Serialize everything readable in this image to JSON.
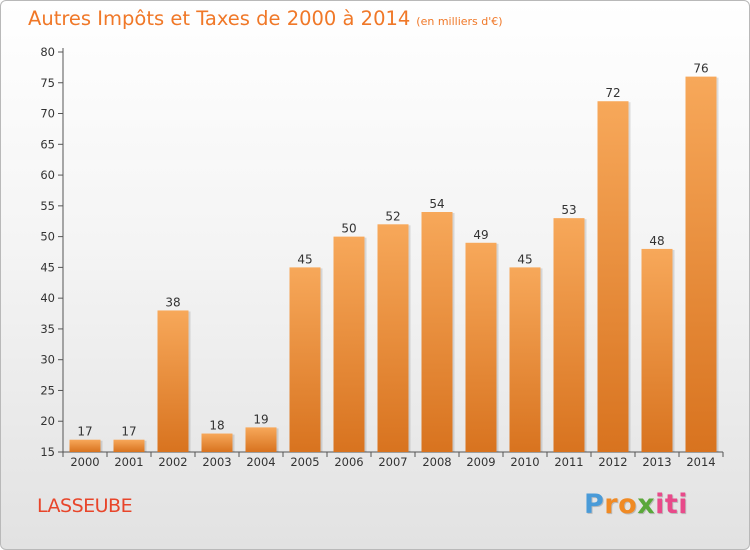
{
  "title": "Autres Impôts et Taxes de 2000 à 2014",
  "unit_note": "(en milliers d'€)",
  "commune": "LASSEUBE",
  "logo": {
    "letters": [
      "P",
      "r",
      "o",
      "x",
      "i",
      "t",
      "i"
    ],
    "colors": [
      "#4a9bd8",
      "#f08a24",
      "#f08a24",
      "#5aa83a",
      "#e84a8a",
      "#e84a8a",
      "#e84a8a"
    ]
  },
  "chart_data": {
    "type": "bar",
    "categories": [
      "2000",
      "2001",
      "2002",
      "2003",
      "2004",
      "2005",
      "2006",
      "2007",
      "2008",
      "2009",
      "2010",
      "2011",
      "2012",
      "2013",
      "2014"
    ],
    "values": [
      17,
      17,
      38,
      18,
      19,
      45,
      50,
      52,
      54,
      49,
      45,
      53,
      72,
      48,
      76
    ],
    "ylim": [
      15,
      80
    ],
    "yticks": [
      15,
      20,
      25,
      30,
      35,
      40,
      45,
      50,
      55,
      60,
      65,
      70,
      75,
      80
    ],
    "grid": false,
    "bar_color_top": "#f7a85a",
    "bar_color_bottom": "#d8731f"
  }
}
